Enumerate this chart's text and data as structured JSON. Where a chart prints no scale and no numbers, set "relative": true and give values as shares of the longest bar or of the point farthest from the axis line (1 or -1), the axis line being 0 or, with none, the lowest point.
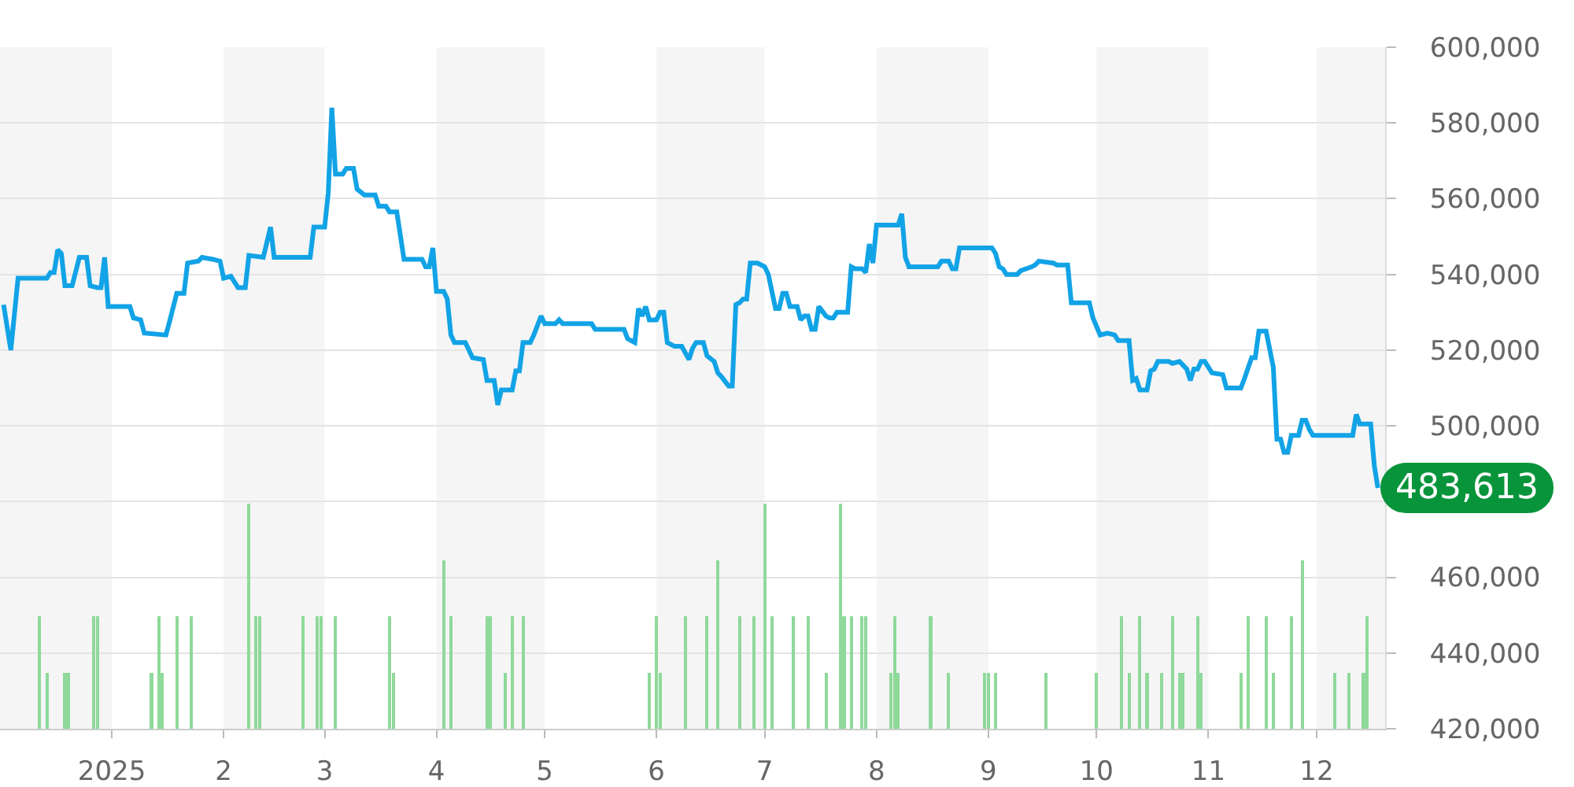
{
  "chart_data": [
    {
      "type": "line",
      "color": "#12a3e6",
      "x": [
        "2024-12-02",
        "2024-12-04",
        "2024-12-06",
        "2024-12-14",
        "2024-12-15",
        "2024-12-16",
        "2024-12-17",
        "2024-12-18",
        "2024-12-19",
        "2024-12-21",
        "2024-12-23",
        "2024-12-25",
        "2024-12-26",
        "2024-12-28",
        "2024-12-29",
        "2024-12-30",
        "2024-12-31",
        "2025-01-06",
        "2025-01-07",
        "2025-01-09",
        "2025-01-10",
        "2025-01-16",
        "2025-01-17",
        "2025-01-19",
        "2025-01-21",
        "2025-01-22",
        "2025-01-25",
        "2025-01-26",
        "2025-01-29",
        "2025-01-31",
        "2025-02-01",
        "2025-02-03",
        "2025-02-05",
        "2025-02-07",
        "2025-02-08",
        "2025-02-12",
        "2025-02-14",
        "2025-02-15",
        "2025-02-25",
        "2025-02-26",
        "2025-03-01",
        "2025-03-02",
        "2025-03-03",
        "2025-03-04",
        "2025-03-06",
        "2025-03-07",
        "2025-03-09",
        "2025-03-10",
        "2025-03-12",
        "2025-03-15",
        "2025-03-16",
        "2025-03-18",
        "2025-03-19",
        "2025-03-21",
        "2025-03-23",
        "2025-03-28",
        "2025-03-29",
        "2025-03-30",
        "2025-03-31",
        "2025-04-01",
        "2025-04-03",
        "2025-04-04",
        "2025-04-05",
        "2025-04-06",
        "2025-04-09",
        "2025-04-11",
        "2025-04-14",
        "2025-04-15",
        "2025-04-17",
        "2025-04-18",
        "2025-04-19",
        "2025-04-22",
        "2025-04-23",
        "2025-04-24",
        "2025-04-25",
        "2025-04-27",
        "2025-04-28",
        "2025-04-30",
        "2025-05-01",
        "2025-05-04",
        "2025-05-05",
        "2025-05-06",
        "2025-05-14",
        "2025-05-15",
        "2025-05-23",
        "2025-05-24",
        "2025-05-26",
        "2025-05-27",
        "2025-05-28",
        "2025-05-29",
        "2025-05-30",
        "2025-06-01",
        "2025-06-02",
        "2025-06-03",
        "2025-06-04",
        "2025-06-06",
        "2025-06-08",
        "2025-06-10",
        "2025-06-11",
        "2025-06-12",
        "2025-06-14",
        "2025-06-15",
        "2025-06-17",
        "2025-06-18",
        "2025-06-19",
        "2025-06-21",
        "2025-06-22",
        "2025-06-23",
        "2025-06-24",
        "2025-06-25",
        "2025-06-26",
        "2025-06-27",
        "2025-06-29",
        "2025-07-01",
        "2025-07-02",
        "2025-07-04",
        "2025-07-05",
        "2025-07-06",
        "2025-07-07",
        "2025-07-08",
        "2025-07-10",
        "2025-07-11",
        "2025-07-12",
        "2025-07-13",
        "2025-07-14",
        "2025-07-15",
        "2025-07-16",
        "2025-07-18",
        "2025-07-19",
        "2025-07-20",
        "2025-07-21",
        "2025-07-24",
        "2025-07-25",
        "2025-07-26",
        "2025-07-28",
        "2025-07-29",
        "2025-07-30",
        "2025-07-31",
        "2025-08-01",
        "2025-08-07",
        "2025-08-08",
        "2025-08-09",
        "2025-08-10",
        "2025-08-18",
        "2025-08-19",
        "2025-08-21",
        "2025-08-22",
        "2025-08-23",
        "2025-08-24",
        "2025-09-02",
        "2025-09-03",
        "2025-09-04",
        "2025-09-05",
        "2025-09-06",
        "2025-09-09",
        "2025-09-10",
        "2025-09-13",
        "2025-09-14",
        "2025-09-15",
        "2025-09-19",
        "2025-09-20",
        "2025-09-23",
        "2025-09-24",
        "2025-09-29",
        "2025-09-30",
        "2025-10-02",
        "2025-10-04",
        "2025-10-06",
        "2025-10-07",
        "2025-10-10",
        "2025-10-11",
        "2025-10-12",
        "2025-10-13",
        "2025-10-15",
        "2025-10-16",
        "2025-10-17",
        "2025-10-18",
        "2025-10-21",
        "2025-10-22",
        "2025-10-24",
        "2025-10-26",
        "2025-10-27",
        "2025-10-28",
        "2025-10-29",
        "2025-10-30",
        "2025-10-31",
        "2025-11-02",
        "2025-11-05",
        "2025-11-06",
        "2025-11-10",
        "2025-11-11",
        "2025-11-13",
        "2025-11-14",
        "2025-11-15",
        "2025-11-17",
        "2025-11-19",
        "2025-11-20",
        "2025-11-21",
        "2025-11-22",
        "2025-11-23",
        "2025-11-24",
        "2025-11-26",
        "2025-11-27",
        "2025-11-28",
        "2025-11-29",
        "2025-11-30",
        "2025-12-11",
        "2025-12-12",
        "2025-12-13",
        "2025-12-16",
        "2025-12-17",
        "2025-12-18"
      ],
      "values": [
        532000,
        520000,
        539000,
        539000,
        540500,
        540500,
        546500,
        545500,
        537000,
        537000,
        544500,
        544500,
        537000,
        536500,
        536500,
        544500,
        531500,
        531500,
        528500,
        528000,
        524500,
        524000,
        527500,
        535000,
        535000,
        543000,
        543500,
        544500,
        544000,
        543500,
        539000,
        539500,
        536500,
        536500,
        545000,
        544500,
        552500,
        544500,
        544500,
        552500,
        552500,
        561500,
        584000,
        566500,
        566500,
        568000,
        568000,
        562500,
        561000,
        561000,
        558000,
        558000,
        556500,
        556500,
        544000,
        544000,
        542000,
        542000,
        547000,
        535500,
        535500,
        533500,
        524000,
        522000,
        522000,
        518000,
        517500,
        512000,
        512000,
        505500,
        509500,
        509500,
        514500,
        514500,
        522000,
        522000,
        524000,
        529000,
        527000,
        527000,
        528000,
        527000,
        527000,
        525500,
        525500,
        523000,
        522000,
        531000,
        529000,
        531500,
        528000,
        528000,
        530000,
        530000,
        522000,
        521000,
        521000,
        517500,
        520500,
        522000,
        522000,
        518500,
        517000,
        514000,
        513000,
        510500,
        510500,
        532000,
        532500,
        533500,
        533500,
        543000,
        543000,
        542000,
        540000,
        531000,
        531000,
        535000,
        535000,
        531500,
        531500,
        528000,
        529000,
        529000,
        525500,
        525500,
        531500,
        529000,
        528500,
        528500,
        530000,
        530000,
        542000,
        541500,
        541500,
        540500,
        548000,
        543000,
        553000,
        553000,
        556000,
        544500,
        542000,
        542000,
        543500,
        543500,
        541500,
        541500,
        547000,
        547000,
        545500,
        542000,
        541500,
        540000,
        540000,
        541000,
        542000,
        542500,
        543500,
        543000,
        542500,
        542500,
        532500,
        532500,
        528500,
        524000,
        524500,
        524000,
        522500,
        522500,
        512000,
        512500,
        509500,
        509500,
        514500,
        515000,
        517000,
        517000,
        516500,
        517000,
        515000,
        512000,
        515000,
        515000,
        517000,
        517000,
        514000,
        513500,
        510000,
        510000,
        512500,
        518000,
        518000,
        525000,
        525000,
        515500,
        496500,
        496500,
        493000,
        493000,
        497500,
        497500,
        501500,
        501500,
        499000,
        497500,
        497500,
        503000,
        500500,
        500500,
        489500,
        483613
      ],
      "xlim": [
        "2024-12-01",
        "2025-12-20"
      ],
      "xticks": [
        {
          "value": "2025-01-01",
          "label": "2025"
        },
        {
          "value": "2025-02-01",
          "label": "2"
        },
        {
          "value": "2025-03-01",
          "label": "3"
        },
        {
          "value": "2025-04-01",
          "label": "4"
        },
        {
          "value": "2025-05-01",
          "label": "5"
        },
        {
          "value": "2025-06-01",
          "label": "6"
        },
        {
          "value": "2025-07-01",
          "label": "7"
        },
        {
          "value": "2025-08-01",
          "label": "8"
        },
        {
          "value": "2025-09-01",
          "label": "9"
        },
        {
          "value": "2025-10-01",
          "label": "10"
        },
        {
          "value": "2025-11-01",
          "label": "11"
        },
        {
          "value": "2025-12-01",
          "label": "12"
        }
      ],
      "ylim": [
        420000,
        600000
      ],
      "yticks": [
        {
          "value": 420000,
          "label": "420,000"
        },
        {
          "value": 440000,
          "label": "440,000"
        },
        {
          "value": 460000,
          "label": "460,000"
        },
        {
          "value": 480000,
          "label": null
        },
        {
          "value": 500000,
          "label": "500,000"
        },
        {
          "value": 520000,
          "label": "520,000"
        },
        {
          "value": 540000,
          "label": "540,000"
        },
        {
          "value": 560000,
          "label": "560,000"
        },
        {
          "value": 580000,
          "label": "580,000"
        },
        {
          "value": 600000,
          "label": "600,000"
        }
      ],
      "grid": "y",
      "bands": [
        {
          "axis": "x",
          "from": "2024-12-01",
          "to": "2025-01-01",
          "color": "#f5f5f5"
        },
        {
          "axis": "x",
          "from": "2025-02-01",
          "to": "2025-03-01",
          "color": "#f5f5f5"
        },
        {
          "axis": "x",
          "from": "2025-04-01",
          "to": "2025-05-01",
          "color": "#f5f5f5"
        },
        {
          "axis": "x",
          "from": "2025-06-01",
          "to": "2025-07-01",
          "color": "#f5f5f5"
        },
        {
          "axis": "x",
          "from": "2025-08-01",
          "to": "2025-09-01",
          "color": "#f5f5f5"
        },
        {
          "axis": "x",
          "from": "2025-10-01",
          "to": "2025-11-01",
          "color": "#f5f5f5"
        },
        {
          "axis": "x",
          "from": "2025-12-01",
          "to": "2025-12-20",
          "color": "#f5f5f5"
        }
      ],
      "annotations": [
        {
          "text": "483,613",
          "x": "2025-12-18",
          "y": 483613
        }
      ]
    },
    {
      "type": "bar",
      "relative": true,
      "color": "#8fd99a",
      "tick_labels": false,
      "x": [
        "2024-12-12",
        "2024-12-14",
        "2024-12-19",
        "2024-12-20",
        "2024-12-27",
        "2024-12-28",
        "2025-01-12",
        "2025-01-14",
        "2025-01-15",
        "2025-01-19",
        "2025-01-23",
        "2025-02-08",
        "2025-02-10",
        "2025-02-11",
        "2025-02-23",
        "2025-02-27",
        "2025-02-28",
        "2025-03-04",
        "2025-03-19",
        "2025-03-20",
        "2025-04-03",
        "2025-04-05",
        "2025-04-15",
        "2025-04-16",
        "2025-04-20",
        "2025-04-22",
        "2025-04-25",
        "2025-05-30",
        "2025-06-01",
        "2025-06-02",
        "2025-06-09",
        "2025-06-15",
        "2025-06-18",
        "2025-06-24",
        "2025-06-28",
        "2025-07-01",
        "2025-07-03",
        "2025-07-09",
        "2025-07-13",
        "2025-07-18",
        "2025-07-22",
        "2025-07-23",
        "2025-07-25",
        "2025-07-28",
        "2025-07-29",
        "2025-08-05",
        "2025-08-06",
        "2025-08-07",
        "2025-08-16",
        "2025-08-21",
        "2025-08-31",
        "2025-09-01",
        "2025-09-03",
        "2025-09-17",
        "2025-10-01",
        "2025-10-08",
        "2025-10-10",
        "2025-10-13",
        "2025-10-15",
        "2025-10-19",
        "2025-10-22",
        "2025-10-24",
        "2025-10-25",
        "2025-10-29",
        "2025-10-30",
        "2025-11-10",
        "2025-11-12",
        "2025-11-17",
        "2025-11-19",
        "2025-11-24",
        "2025-11-27",
        "2025-12-06",
        "2025-12-10",
        "2025-12-14",
        "2025-12-15"
      ],
      "values": [
        0.5,
        0.25,
        0.25,
        0.25,
        0.5,
        0.5,
        0.25,
        0.5,
        0.25,
        0.5,
        0.5,
        1,
        0.5,
        0.5,
        0.5,
        0.5,
        0.5,
        0.5,
        0.5,
        0.25,
        0.75,
        0.5,
        0.5,
        0.5,
        0.25,
        0.5,
        0.5,
        0.25,
        0.5,
        0.25,
        0.5,
        0.5,
        0.75,
        0.5,
        0.5,
        1,
        0.5,
        0.5,
        0.5,
        0.25,
        1,
        0.5,
        0.5,
        0.5,
        0.5,
        0.25,
        0.5,
        0.25,
        0.5,
        0.25,
        0.25,
        0.25,
        0.25,
        0.25,
        0.25,
        0.5,
        0.25,
        0.5,
        0.25,
        0.25,
        0.5,
        0.25,
        0.25,
        0.5,
        0.25,
        0.25,
        0.5,
        0.5,
        0.25,
        0.5,
        0.75,
        0.25,
        0.25,
        0.25,
        0.5
      ],
      "xlim": [
        "2024-12-01",
        "2025-12-20"
      ]
    }
  ]
}
